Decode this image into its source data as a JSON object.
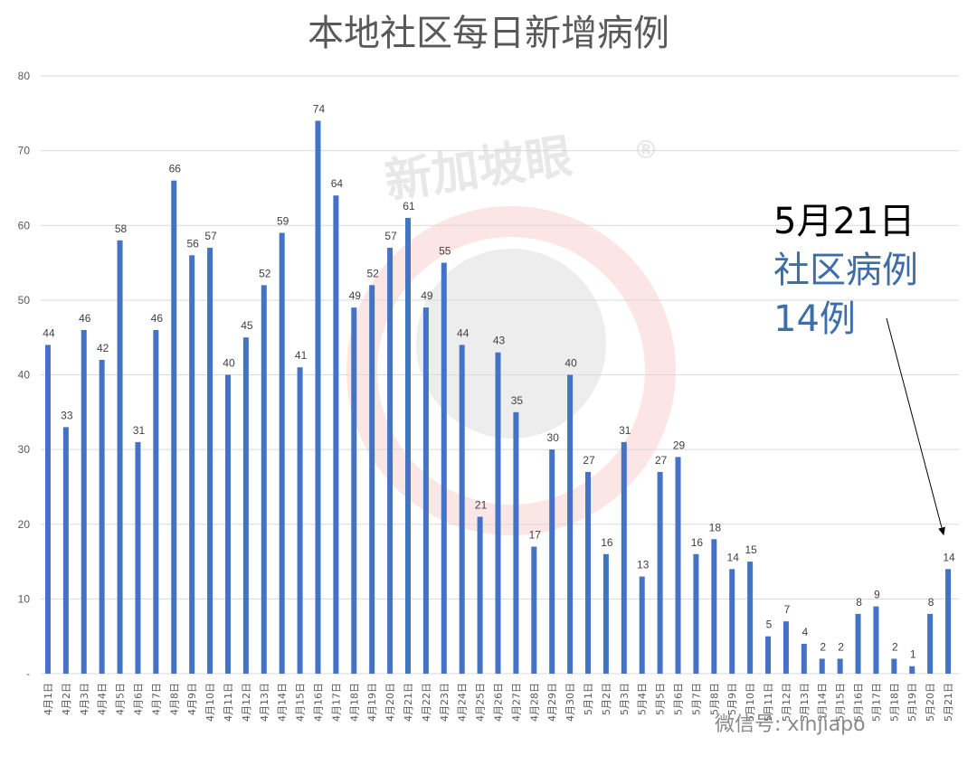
{
  "chart_data": {
    "type": "bar",
    "title": "本地社区每日新增病例",
    "xlabel": "",
    "ylabel": "",
    "ylim": [
      0,
      80
    ],
    "yticks": [
      "-",
      "10",
      "20",
      "30",
      "40",
      "50",
      "60",
      "70",
      "80"
    ],
    "grid": true,
    "bar_color": "#4472c4",
    "categories": [
      "4月1日",
      "4月2日",
      "4月3日",
      "4月4日",
      "4月5日",
      "4月6日",
      "4月7日",
      "4月8日",
      "4月9日",
      "4月10日",
      "4月11日",
      "4月12日",
      "4月13日",
      "4月14日",
      "4月15日",
      "4月16日",
      "4月17日",
      "4月18日",
      "4月19日",
      "4月20日",
      "4月21日",
      "4月22日",
      "4月23日",
      "4月24日",
      "4月25日",
      "4月26日",
      "4月27日",
      "4月28日",
      "4月29日",
      "4月30日",
      "5月1日",
      "5月2日",
      "5月3日",
      "5月4日",
      "5月5日",
      "5月6日",
      "5月7日",
      "5月8日",
      "5月9日",
      "5月10日",
      "5月11日",
      "5月12日",
      "5月13日",
      "5月14日",
      "5月15日",
      "5月16日",
      "5月17日",
      "5月18日",
      "5月19日",
      "5月20日",
      "5月21日"
    ],
    "values": [
      44,
      33,
      46,
      42,
      58,
      31,
      46,
      66,
      56,
      57,
      40,
      45,
      52,
      59,
      41,
      74,
      64,
      49,
      52,
      57,
      61,
      49,
      55,
      44,
      21,
      43,
      35,
      17,
      30,
      40,
      27,
      16,
      31,
      13,
      27,
      29,
      16,
      18,
      14,
      15,
      5,
      7,
      4,
      2,
      2,
      8,
      9,
      2,
      1,
      8,
      14
    ],
    "annotations": [
      {
        "lines": [
          "5月21日",
          "社区病例",
          "14例"
        ],
        "colors": [
          "#000000",
          "#3d6ea8",
          "#3d6ea8"
        ],
        "points_to": "5月21日"
      }
    ]
  },
  "watermark": {
    "text": "新加坡眼",
    "mark": "®",
    "footer": "微信号: xinjiapo"
  }
}
